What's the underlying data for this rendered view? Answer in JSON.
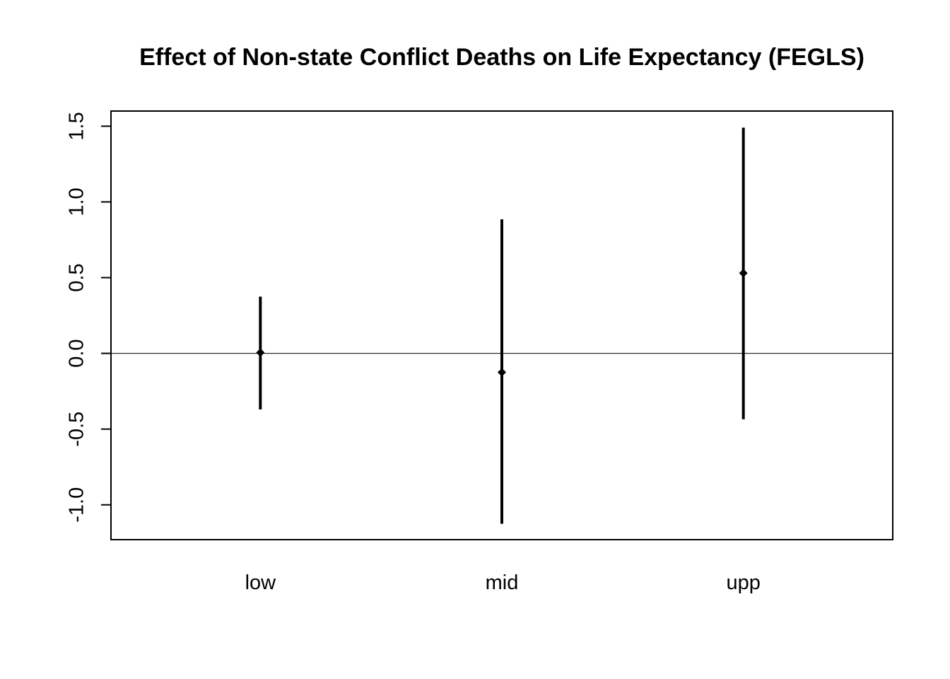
{
  "chart_data": {
    "type": "errorbar",
    "title": "Effect of Non-state Conflict Deaths on Life Expectancy (FEGLS)",
    "xlabel": "",
    "ylabel": "",
    "categories": [
      "low",
      "mid",
      "upp"
    ],
    "estimates": [
      0.005,
      -0.125,
      0.53
    ],
    "lower": [
      -0.37,
      -1.125,
      -0.435
    ],
    "upper": [
      0.375,
      0.885,
      1.49
    ],
    "yticks": [
      -1.0,
      -0.5,
      0.0,
      0.5,
      1.0,
      1.5
    ],
    "ytick_labels": [
      "-1.0",
      "-0.5",
      "0.0",
      "0.5",
      "1.0",
      "1.5"
    ],
    "ylim": [
      -1.23,
      1.6
    ],
    "reference_line": 0,
    "grid": false,
    "colors": {
      "marks": "#000000",
      "axes": "#000000"
    }
  }
}
